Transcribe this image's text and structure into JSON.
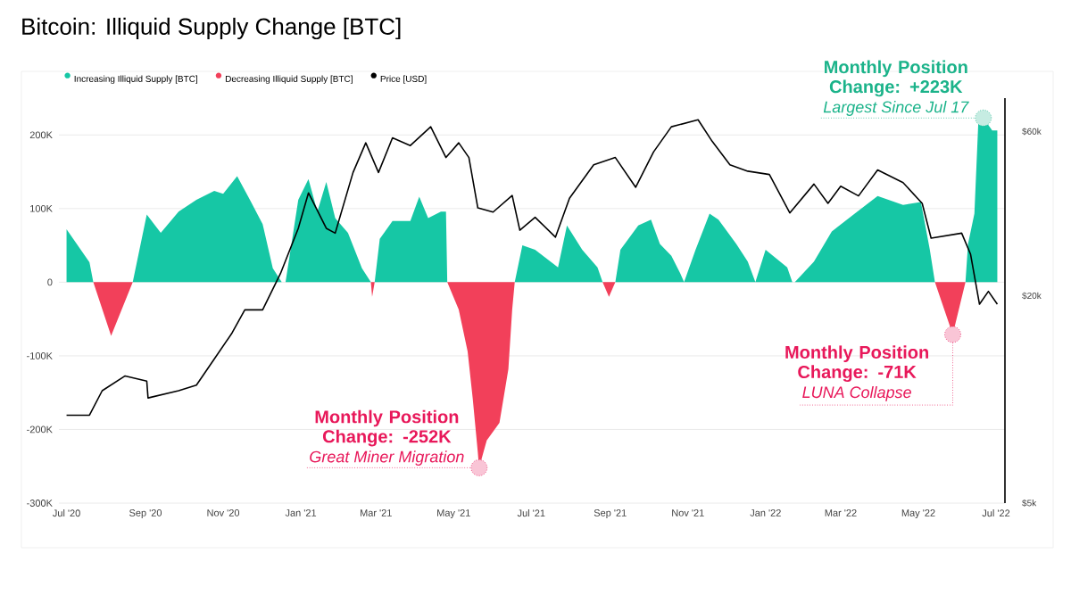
{
  "chart_data": {
    "type": "area",
    "title": "Bitcoin: Illiquid Supply Change [BTC]",
    "legend": "top left",
    "grid": "y",
    "xlim": [
      "2020-06-25",
      "2022-07-08"
    ],
    "xticks": [
      {
        "value": "2020-07-01",
        "label": "Jul '20"
      },
      {
        "value": "2020-09-01",
        "label": "Sep '20"
      },
      {
        "value": "2020-11-01",
        "label": "Nov '20"
      },
      {
        "value": "2021-01-01",
        "label": "Jan '21"
      },
      {
        "value": "2021-03-01",
        "label": "Mar '21"
      },
      {
        "value": "2021-05-01",
        "label": "May '21"
      },
      {
        "value": "2021-07-01",
        "label": "Jul '21"
      },
      {
        "value": "2021-09-01",
        "label": "Sep '21"
      },
      {
        "value": "2021-11-01",
        "label": "Nov '21"
      },
      {
        "value": "2022-01-01",
        "label": "Jan '22"
      },
      {
        "value": "2022-03-01",
        "label": "Mar '22"
      },
      {
        "value": "2022-05-01",
        "label": "May '22"
      },
      {
        "value": "2022-07-01",
        "label": "Jul '22"
      }
    ],
    "ylim": [
      -300000,
      250000
    ],
    "yticks": [
      {
        "value": -300000,
        "label": "-300K"
      },
      {
        "value": -200000,
        "label": "-200K"
      },
      {
        "value": -100000,
        "label": "-100K"
      },
      0,
      {
        "value": 100000,
        "label": "100K"
      },
      {
        "value": 200000,
        "label": "200K"
      }
    ],
    "y2lim": [
      5000,
      75000
    ],
    "log": "y2",
    "y2ticks": [
      {
        "value": 5000,
        "label": "$5k"
      },
      {
        "value": 20000,
        "label": "$20k"
      },
      {
        "value": 60000,
        "label": "$60k"
      }
    ],
    "series": [
      {
        "name": "Increasing Illiquid Supply [BTC]",
        "color": "#16c7a5",
        "x": [
          "2020-07-01",
          "2020-07-19",
          "2020-07-22",
          "2020-08-22",
          "2020-09-02",
          "2020-09-13",
          "2020-09-27",
          "2020-10-11",
          "2020-10-25",
          "2020-11-01",
          "2020-11-12",
          "2020-11-22",
          "2020-12-02",
          "2020-12-10",
          "2020-12-17",
          "2020-12-20",
          "2020-12-30",
          "2021-01-07",
          "2021-01-14",
          "2021-01-21",
          "2021-01-28",
          "2021-02-07",
          "2021-02-18",
          "2021-02-25",
          "2021-02-28",
          "2021-03-04",
          "2021-03-14",
          "2021-03-28",
          "2021-04-04",
          "2021-04-11",
          "2021-04-21",
          "2021-04-25",
          "2021-04-26",
          "2021-06-18",
          "2021-06-24",
          "2021-07-04",
          "2021-07-22",
          "2021-07-29",
          "2021-08-10",
          "2021-08-22",
          "2021-08-26",
          "2021-09-05",
          "2021-09-09",
          "2021-09-23",
          "2021-10-03",
          "2021-10-10",
          "2021-10-19",
          "2021-10-26",
          "2021-10-29",
          "2021-11-07",
          "2021-11-18",
          "2021-11-25",
          "2021-12-09",
          "2021-12-18",
          "2021-12-24",
          "2022-01-01",
          "2022-01-18",
          "2022-01-22",
          "2022-01-24",
          "2022-02-08",
          "2022-02-22",
          "2022-03-12",
          "2022-03-30",
          "2022-04-19",
          "2022-05-03",
          "2022-05-10",
          "2022-05-14",
          "2022-06-07",
          "2022-06-09",
          "2022-06-14",
          "2022-06-17",
          "2022-06-21",
          "2022-06-28",
          "2022-07-02"
        ],
        "values": [
          72000,
          27000,
          0,
          0,
          92000,
          67000,
          96000,
          112000,
          124000,
          120000,
          144000,
          112000,
          79000,
          19000,
          0,
          0,
          112000,
          140000,
          96000,
          136000,
          87000,
          67000,
          19000,
          0,
          0,
          59000,
          83000,
          83000,
          116000,
          87000,
          96000,
          96000,
          0,
          0,
          50000,
          44000,
          20000,
          77000,
          44000,
          20000,
          0,
          0,
          44000,
          77000,
          85000,
          52000,
          36000,
          12000,
          0,
          44000,
          93000,
          85000,
          52000,
          28000,
          0,
          44000,
          20000,
          0,
          0,
          28000,
          69000,
          93000,
          117000,
          105000,
          109000,
          44000,
          0,
          0,
          52000,
          93000,
          214000,
          223000,
          206000,
          206000
        ]
      },
      {
        "name": "Decreasing Illiquid Supply [BTC]",
        "color": "#f2405a",
        "x": [
          "2020-07-22",
          "2020-08-05",
          "2020-08-22",
          "2021-02-25",
          "2021-02-26",
          "2021-02-28",
          "2021-04-26",
          "2021-05-05",
          "2021-05-12",
          "2021-05-16",
          "2021-05-20",
          "2021-05-21",
          "2021-05-27",
          "2021-06-06",
          "2021-06-13",
          "2021-06-16",
          "2021-06-18",
          "2021-08-26",
          "2021-08-31",
          "2021-09-05",
          "2022-05-14",
          "2022-05-28",
          "2022-06-07"
        ],
        "values": [
          0,
          -73000,
          0,
          0,
          -20000,
          0,
          0,
          -37000,
          -94000,
          -158000,
          -231000,
          -252000,
          -215000,
          -191000,
          -118000,
          -37000,
          0,
          0,
          -20000,
          0,
          0,
          -71000,
          0
        ]
      },
      {
        "name": "Price [USD]",
        "color": "#000000",
        "type": "line",
        "axis": "y2",
        "x": [
          "2020-07-01",
          "2020-07-19",
          "2020-07-29",
          "2020-08-16",
          "2020-09-02",
          "2020-09-03",
          "2020-09-27",
          "2020-10-11",
          "2020-10-25",
          "2020-11-08",
          "2020-11-18",
          "2020-12-02",
          "2020-12-16",
          "2020-12-30",
          "2021-01-07",
          "2021-01-21",
          "2021-01-28",
          "2021-02-11",
          "2021-02-21",
          "2021-03-03",
          "2021-03-14",
          "2021-03-28",
          "2021-04-13",
          "2021-04-25",
          "2021-05-05",
          "2021-05-13",
          "2021-05-20",
          "2021-06-01",
          "2021-06-16",
          "2021-06-22",
          "2021-07-04",
          "2021-07-20",
          "2021-07-31",
          "2021-08-19",
          "2021-09-05",
          "2021-09-21",
          "2021-10-05",
          "2021-10-19",
          "2021-11-09",
          "2021-11-20",
          "2021-12-04",
          "2021-12-18",
          "2022-01-04",
          "2022-01-20",
          "2022-02-08",
          "2022-02-19",
          "2022-03-01",
          "2022-03-15",
          "2022-03-30",
          "2022-04-19",
          "2022-05-04",
          "2022-05-11",
          "2022-06-04",
          "2022-06-11",
          "2022-06-18",
          "2022-06-25",
          "2022-07-02"
        ],
        "values": [
          9000,
          9000,
          10600,
          11700,
          11300,
          10100,
          10600,
          11000,
          13100,
          15600,
          18200,
          18200,
          23200,
          31400,
          39800,
          31400,
          30400,
          45600,
          55600,
          45600,
          57500,
          54600,
          61900,
          50400,
          55600,
          50400,
          36000,
          35000,
          39100,
          31000,
          33800,
          29600,
          38400,
          48000,
          50400,
          41300,
          52300,
          61900,
          64900,
          56200,
          48000,
          46000,
          45000,
          34800,
          42200,
          37100,
          41600,
          39000,
          46400,
          42600,
          37100,
          29400,
          30400,
          26400,
          18900,
          20600,
          18900
        ]
      }
    ],
    "annotations": [
      {
        "text": "Monthly Position Change: +223K",
        "x": "2022-06-21",
        "y": 223000
      },
      {
        "text": "Largest Since Jul 17",
        "x": "2022-06-21",
        "y": 223000
      },
      {
        "text": "Monthly Position Change: -252K",
        "x": "2021-05-21",
        "y": -252000
      },
      {
        "text": "Great Miner Migration",
        "x": "2021-05-21",
        "y": -252000
      },
      {
        "text": "Monthly Position Change: -71K",
        "x": "2022-05-28",
        "y": -71000
      },
      {
        "text": "LUNA Collapse",
        "x": "2022-05-28",
        "y": -71000
      }
    ]
  }
}
